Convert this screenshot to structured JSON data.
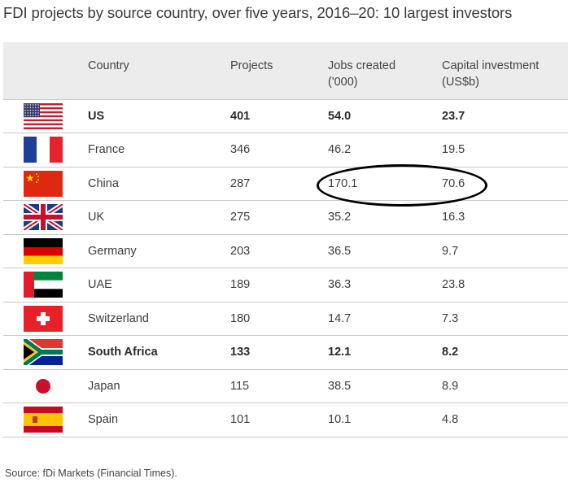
{
  "title": "FDI projects by source country, over five years, 2016–20: 10 largest investors",
  "source": "Source: fDi Markets (Financial Times).",
  "chart_data": {
    "type": "table",
    "columns": {
      "country": "Country",
      "projects": "Projects",
      "jobs_line1": "Jobs created",
      "jobs_line2": "('000)",
      "capital_line1": "Capital investment",
      "capital_line2": "(US$b)"
    },
    "rows": [
      {
        "flag": "us-flag",
        "country": "US",
        "projects": "401",
        "jobs": "54.0",
        "capital": "23.7",
        "bold": true
      },
      {
        "flag": "france-flag",
        "country": "France",
        "projects": "346",
        "jobs": "46.2",
        "capital": "19.5",
        "bold": false
      },
      {
        "flag": "china-flag",
        "country": "China",
        "projects": "287",
        "jobs": "170.1",
        "capital": "70.6",
        "bold": false,
        "circled": true
      },
      {
        "flag": "uk-flag",
        "country": "UK",
        "projects": "275",
        "jobs": "35.2",
        "capital": "16.3",
        "bold": false
      },
      {
        "flag": "germany-flag",
        "country": "Germany",
        "projects": "203",
        "jobs": "36.5",
        "capital": "9.7",
        "bold": false
      },
      {
        "flag": "uae-flag",
        "country": "UAE",
        "projects": "189",
        "jobs": "36.3",
        "capital": "23.8",
        "bold": false
      },
      {
        "flag": "switzerland-flag",
        "country": "Switzerland",
        "projects": "180",
        "jobs": "14.7",
        "capital": "7.3",
        "bold": false
      },
      {
        "flag": "south-africa-flag",
        "country": "South Africa",
        "projects": "133",
        "jobs": "12.1",
        "capital": "8.2",
        "bold": true
      },
      {
        "flag": "japan-flag",
        "country": "Japan",
        "projects": "115",
        "jobs": "38.5",
        "capital": "8.9",
        "bold": false
      },
      {
        "flag": "spain-flag",
        "country": "Spain",
        "projects": "101",
        "jobs": "10.1",
        "capital": "4.8",
        "bold": false
      }
    ]
  }
}
